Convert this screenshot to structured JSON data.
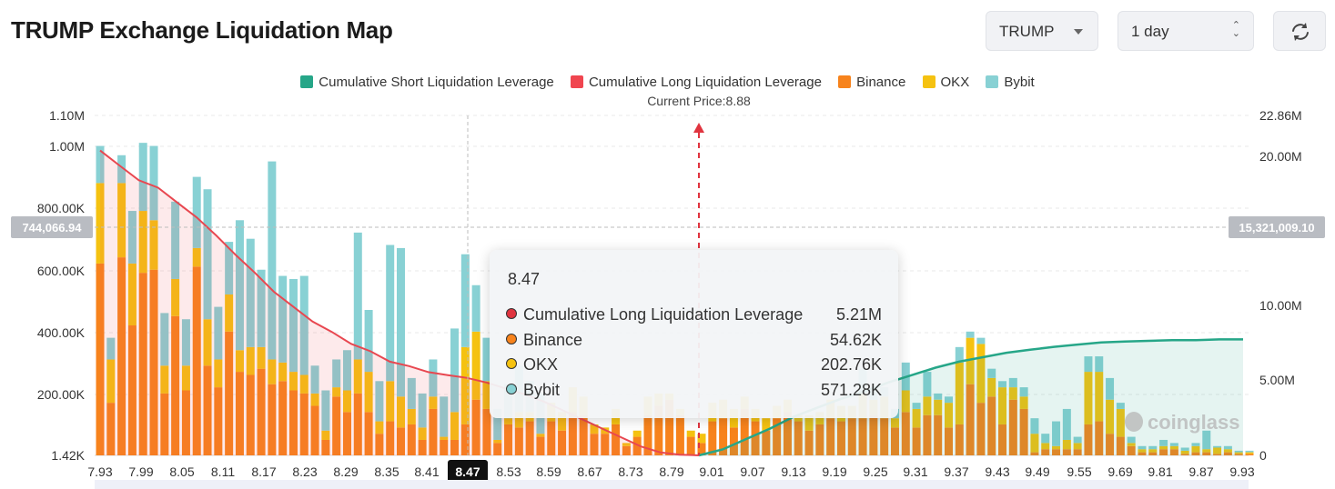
{
  "title": "TRUMP Exchange Liquidation Map",
  "controls": {
    "symbol": "TRUMP",
    "interval": "1 day",
    "refresh_icon": "refresh-icon"
  },
  "legend": [
    {
      "label": "Cumulative Short Liquidation Leverage",
      "color": "#26a688"
    },
    {
      "label": "Cumulative Long Liquidation Leverage",
      "color": "#f0454f"
    },
    {
      "label": "Binance",
      "color": "#f7831c"
    },
    {
      "label": "OKX",
      "color": "#f5c210"
    },
    {
      "label": "Bybit",
      "color": "#88d1d4"
    }
  ],
  "current_price_label": "Current Price:8.88",
  "crosshair": {
    "left_value": "744,066.94",
    "right_value": "15,321,009.10",
    "x_label": "8.47"
  },
  "tooltip": {
    "header": "8.47",
    "rows": [
      {
        "label": "Cumulative Long Liquidation Leverage",
        "value": "5.21M",
        "color": "#e0343f"
      },
      {
        "label": "Binance",
        "value": "54.62K",
        "color": "#f7831c"
      },
      {
        "label": "OKX",
        "value": "202.76K",
        "color": "#f5c210"
      },
      {
        "label": "Bybit",
        "value": "571.28K",
        "color": "#88d1d4"
      }
    ]
  },
  "watermark": "coinglass",
  "chart_data": {
    "type": "bar",
    "title": "TRUMP Exchange Liquidation Map",
    "current_price": 8.88,
    "left_axis_ticks": [
      "1.10M",
      "1.00M",
      "800.00K",
      "600.00K",
      "400.00K",
      "200.00K",
      "1.42K"
    ],
    "right_axis_ticks": [
      "22.86M",
      "20.00M",
      "10.00M",
      "5.00M",
      "0"
    ],
    "x_tick_labels": [
      "7.93",
      "7.99",
      "8.05",
      "8.11",
      "8.17",
      "8.23",
      "8.29",
      "8.35",
      "8.41",
      "8.47",
      "8.53",
      "8.59",
      "8.67",
      "8.73",
      "8.79",
      "9.01",
      "9.07",
      "9.13",
      "9.19",
      "9.25",
      "9.31",
      "9.37",
      "9.43",
      "9.49",
      "9.55",
      "9.69",
      "9.81",
      "9.87",
      "9.93"
    ],
    "colors": {
      "binance": "#f7831c",
      "okx": "#f5c210",
      "bybit": "#88d1d4",
      "long": "#e84750",
      "short": "#26a688"
    },
    "bars": [
      {
        "b": 620,
        "o": 260,
        "y": 120
      },
      {
        "b": 170,
        "o": 140,
        "y": 70
      },
      {
        "b": 640,
        "o": 240,
        "y": 90
      },
      {
        "b": 420,
        "o": 200,
        "y": 170
      },
      {
        "b": 590,
        "o": 200,
        "y": 220
      },
      {
        "b": 600,
        "o": 160,
        "y": 240
      },
      {
        "b": 200,
        "o": 90,
        "y": 170
      },
      {
        "b": 450,
        "o": 120,
        "y": 250
      },
      {
        "b": 210,
        "o": 80,
        "y": 150
      },
      {
        "b": 610,
        "o": 60,
        "y": 230
      },
      {
        "b": 290,
        "o": 150,
        "y": 420
      },
      {
        "b": 220,
        "o": 90,
        "y": 170
      },
      {
        "b": 400,
        "o": 120,
        "y": 170
      },
      {
        "b": 270,
        "o": 70,
        "y": 420
      },
      {
        "b": 260,
        "o": 90,
        "y": 350
      },
      {
        "b": 280,
        "o": 70,
        "y": 250
      },
      {
        "b": 230,
        "o": 80,
        "y": 640
      },
      {
        "b": 240,
        "o": 60,
        "y": 280
      },
      {
        "b": 210,
        "o": 60,
        "y": 300
      },
      {
        "b": 200,
        "o": 60,
        "y": 320
      },
      {
        "b": 160,
        "o": 40,
        "y": 90
      },
      {
        "b": 50,
        "o": 30,
        "y": 130
      },
      {
        "b": 190,
        "o": 30,
        "y": 90
      },
      {
        "b": 140,
        "o": 70,
        "y": 130
      },
      {
        "b": 200,
        "o": 110,
        "y": 410
      },
      {
        "b": 140,
        "o": 130,
        "y": 200
      },
      {
        "b": 70,
        "o": 40,
        "y": 130
      },
      {
        "b": 110,
        "o": 130,
        "y": 440
      },
      {
        "b": 90,
        "o": 100,
        "y": 480
      },
      {
        "b": 100,
        "o": 50,
        "y": 100
      },
      {
        "b": 50,
        "o": 40,
        "y": 110
      },
      {
        "b": 150,
        "o": 40,
        "y": 120
      },
      {
        "b": 50,
        "o": 10,
        "y": 130
      },
      {
        "b": 50,
        "o": 90,
        "y": 270
      },
      {
        "b": 100,
        "o": 250,
        "y": 300
      },
      {
        "b": 180,
        "o": 220,
        "y": 150
      },
      {
        "b": 150,
        "o": 90,
        "y": 140
      },
      {
        "b": 40,
        "o": 10,
        "y": 100
      },
      {
        "b": 100,
        "o": 20,
        "y": 110
      },
      {
        "b": 90,
        "o": 50,
        "y": 150
      },
      {
        "b": 110,
        "o": 30,
        "y": 100
      },
      {
        "b": 60,
        "o": 10,
        "y": 130
      },
      {
        "b": 110,
        "o": 60,
        "y": 0
      },
      {
        "b": 80,
        "o": 60,
        "y": 0
      },
      {
        "b": 140,
        "o": 80,
        "y": 0
      },
      {
        "b": 130,
        "o": 60,
        "y": 0
      },
      {
        "b": 70,
        "o": 30,
        "y": 0
      },
      {
        "b": 70,
        "o": 20,
        "y": 0
      },
      {
        "b": 100,
        "o": 50,
        "y": 0
      },
      {
        "b": 30,
        "o": 10,
        "y": 0
      },
      {
        "b": 60,
        "o": 20,
        "y": 0
      },
      {
        "b": 130,
        "o": 60,
        "y": 0
      },
      {
        "b": 160,
        "o": 40,
        "y": 0
      },
      {
        "b": 180,
        "o": 20,
        "y": 0
      },
      {
        "b": 130,
        "o": 20,
        "y": 0
      },
      {
        "b": 60,
        "o": 20,
        "y": 0
      },
      {
        "b": 40,
        "o": 30,
        "y": 0
      },
      {
        "b": 110,
        "o": 60,
        "y": 0
      },
      {
        "b": 120,
        "o": 60,
        "y": 0
      },
      {
        "b": 90,
        "o": 60,
        "y": 0
      },
      {
        "b": 150,
        "o": 40,
        "y": 0
      },
      {
        "b": 110,
        "o": 40,
        "y": 0
      },
      {
        "b": 80,
        "o": 40,
        "y": 0
      },
      {
        "b": 120,
        "o": 40,
        "y": 0
      },
      {
        "b": 140,
        "o": 40,
        "y": 0
      },
      {
        "b": 110,
        "o": 20,
        "y": 0
      },
      {
        "b": 80,
        "o": 50,
        "y": 0
      },
      {
        "b": 100,
        "o": 40,
        "y": 0
      },
      {
        "b": 120,
        "o": 60,
        "y": 0
      },
      {
        "b": 110,
        "o": 50,
        "y": 0
      },
      {
        "b": 120,
        "o": 40,
        "y": 0
      },
      {
        "b": 120,
        "o": 80,
        "y": 80
      },
      {
        "b": 130,
        "o": 50,
        "y": 30
      },
      {
        "b": 120,
        "o": 70,
        "y": 30
      },
      {
        "b": 90,
        "o": 30,
        "y": 30
      },
      {
        "b": 140,
        "o": 70,
        "y": 90
      },
      {
        "b": 90,
        "o": 60,
        "y": 20
      },
      {
        "b": 130,
        "o": 60,
        "y": 80
      },
      {
        "b": 130,
        "o": 50,
        "y": 20
      },
      {
        "b": 90,
        "o": 80,
        "y": 20
      },
      {
        "b": 100,
        "o": 200,
        "y": 50
      },
      {
        "b": 230,
        "o": 150,
        "y": 20
      },
      {
        "b": 170,
        "o": 190,
        "y": 20
      },
      {
        "b": 190,
        "o": 60,
        "y": 30
      },
      {
        "b": 100,
        "o": 120,
        "y": 20
      },
      {
        "b": 180,
        "o": 40,
        "y": 30
      },
      {
        "b": 150,
        "o": 40,
        "y": 30
      },
      {
        "b": 10,
        "o": 60,
        "y": 50
      },
      {
        "b": 20,
        "o": 20,
        "y": 30
      },
      {
        "b": 20,
        "o": 10,
        "y": 80
      },
      {
        "b": 20,
        "o": 30,
        "y": 100
      },
      {
        "b": 20,
        "o": 20,
        "y": 20
      },
      {
        "b": 100,
        "o": 170,
        "y": 50
      },
      {
        "b": 110,
        "o": 160,
        "y": 50
      },
      {
        "b": 70,
        "o": 110,
        "y": 70
      },
      {
        "b": 60,
        "o": 90,
        "y": 20
      },
      {
        "b": 30,
        "o": 10,
        "y": 20
      },
      {
        "b": 10,
        "o": 10,
        "y": 10
      },
      {
        "b": 10,
        "o": 10,
        "y": 10
      },
      {
        "b": 20,
        "o": 10,
        "y": 20
      },
      {
        "b": 20,
        "o": 10,
        "y": 10
      },
      {
        "b": 5,
        "o": 10,
        "y": 10
      },
      {
        "b": 10,
        "o": 20,
        "y": 10
      },
      {
        "b": 10,
        "o": 10,
        "y": 60
      },
      {
        "b": 5,
        "o": 20,
        "y": 5
      },
      {
        "b": 10,
        "o": 10,
        "y": 10
      },
      {
        "b": 5,
        "o": 5,
        "y": 5
      },
      {
        "b": 5,
        "o": 5,
        "y": 5
      }
    ],
    "long_cumulative_M": [
      20.5,
      19.5,
      18.5,
      18.0,
      17.0,
      16.0,
      14.8,
      13.5,
      12.3,
      11.0,
      10.0,
      9.0,
      8.3,
      7.5,
      7.0,
      6.3,
      6.0,
      5.6,
      5.4,
      5.21,
      4.9,
      4.5,
      4.1,
      3.6,
      3.0,
      2.4,
      1.8,
      1.2,
      0.6,
      0.2,
      0.05,
      0.0
    ],
    "short_cumulative_M": [
      0.0,
      0.4,
      1.1,
      1.8,
      2.6,
      3.2,
      3.8,
      4.3,
      4.9,
      5.4,
      5.9,
      6.3,
      6.6,
      6.9,
      7.1,
      7.3,
      7.45,
      7.6,
      7.65,
      7.7,
      7.75,
      7.75,
      7.8,
      7.8
    ],
    "left_ylim": [
      1420,
      1100000
    ],
    "right_ylim": [
      0,
      22860000
    ]
  }
}
